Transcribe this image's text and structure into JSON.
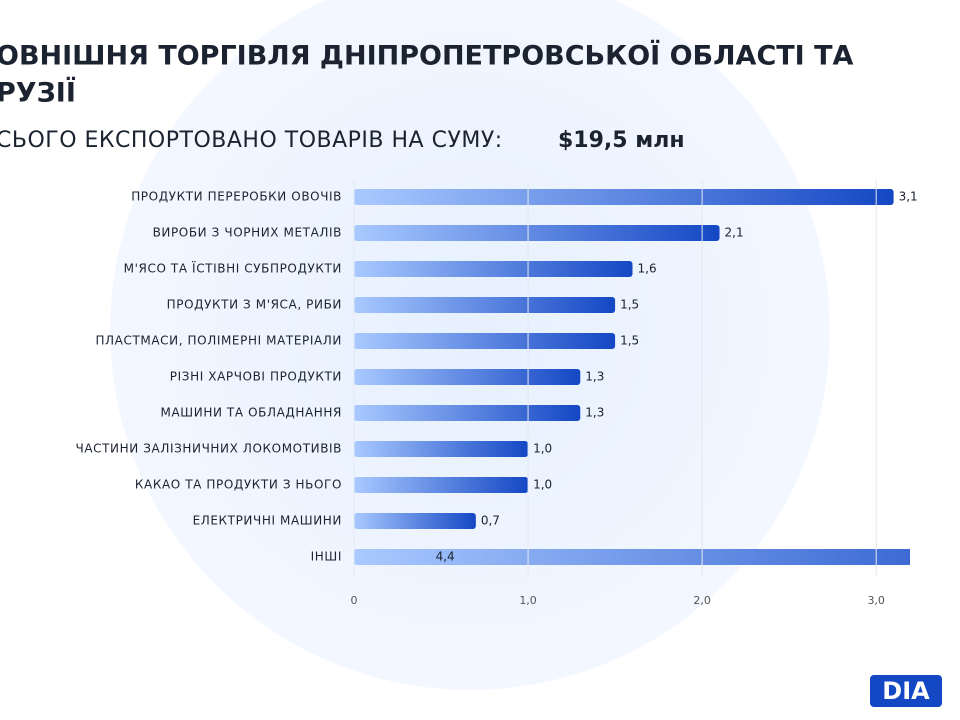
{
  "chart_data": {
    "type": "bar",
    "orientation": "horizontal",
    "title_lines": [
      "ОВНІШНЯ ТОРГІВЛЯ ДНІПРОПЕТРОВСЬКОЇ ОБЛАСТІ ТА",
      "РУЗІЇ"
    ],
    "subtitle": "СЬОГО ЕКСПОРТОВАНО ТОВАРІВ НА СУМУ:",
    "subtitle_value": "$19,5 млн",
    "categories": [
      "ПРОДУКТИ ПЕРЕРОБКИ ОВОЧІВ",
      "ВИРОБИ З ЧОРНИХ МЕТАЛІВ",
      "М'ЯСО ТА ЇСТІВНІ СУБПРОДУКТИ",
      "ПРОДУКТИ З М'ЯСА, РИБИ",
      "ПЛАСТМАСИ, ПОЛІМЕРНІ МАТЕРІАЛИ",
      "РІЗНІ ХАРЧОВІ ПРОДУКТИ",
      "МАШИНИ ТА ОБЛАДНАННЯ",
      "ЧАСТИНИ ЗАЛІЗНИЧНИХ ЛОКОМОТИВІВ",
      "КАКАО ТА ПРОДУКТИ З НЬОГО",
      "ЕЛЕКТРИЧНІ МАШИНИ",
      "ІНШІ"
    ],
    "values": [
      3.1,
      2.1,
      1.6,
      1.5,
      1.5,
      1.3,
      1.3,
      1.0,
      1.0,
      0.7,
      4.4
    ],
    "value_labels": [
      "3,1",
      "2,1",
      "1,6",
      "1,5",
      "1,5",
      "1,3",
      "1,3",
      "1,0",
      "1,0",
      "0,7",
      "4,4"
    ],
    "color": [
      "#a9c9ff",
      "#1447c4"
    ],
    "xlim": [
      0,
      3.2
    ],
    "xticks": [
      0,
      {
        "value": 1,
        "label": "1,0"
      },
      {
        "value": 2,
        "label": "2,0"
      },
      {
        "value": 3,
        "label": "3,0"
      }
    ],
    "grid": true,
    "logo": "DIA"
  }
}
